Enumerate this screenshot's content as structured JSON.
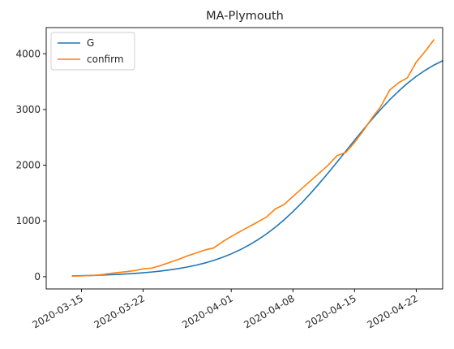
{
  "chart_data": {
    "type": "line",
    "title": "MA-Plymouth",
    "xlabel": "",
    "ylabel": "",
    "x_start": "2020-03-14",
    "xlim": [
      "2020-03-11",
      "2020-04-25"
    ],
    "ylim": [
      -220,
      4470
    ],
    "x_ticks": [
      "2020-03-15",
      "2020-03-22",
      "2020-04-01",
      "2020-04-08",
      "2020-04-15",
      "2020-04-22"
    ],
    "y_ticks": [
      0,
      1000,
      2000,
      3000,
      4000
    ],
    "y_tick_labels": [
      "0",
      "1000",
      "2000",
      "3000",
      "4000"
    ],
    "legend_position": "top-left",
    "grid": false,
    "series": [
      {
        "name": "G",
        "color": "#1f77b4",
        "values": [
          15,
          18,
          22,
          27,
          33,
          40,
          48,
          58,
          70,
          84,
          101,
          121,
          145,
          173,
          206,
          245,
          292,
          346,
          409,
          482,
          565,
          660,
          767,
          887,
          1020,
          1166,
          1324,
          1494,
          1674,
          1861,
          2054,
          2251,
          2447,
          2641,
          2829,
          3008,
          3176,
          3330,
          3470,
          3594,
          3702,
          3796,
          3875
        ]
      },
      {
        "name": "confirm",
        "color": "#ff7f0e",
        "values": [
          10,
          14,
          20,
          30,
          52,
          72,
          88,
          108,
          140,
          155,
          200,
          255,
          310,
          372,
          425,
          478,
          515,
          625,
          720,
          810,
          895,
          980,
          1070,
          1215,
          1295,
          1440,
          1580,
          1720,
          1860,
          2000,
          2170,
          2230,
          2410,
          2620,
          2850,
          3060,
          3350,
          3480,
          3570,
          3850,
          4040,
          4250
        ]
      }
    ]
  }
}
